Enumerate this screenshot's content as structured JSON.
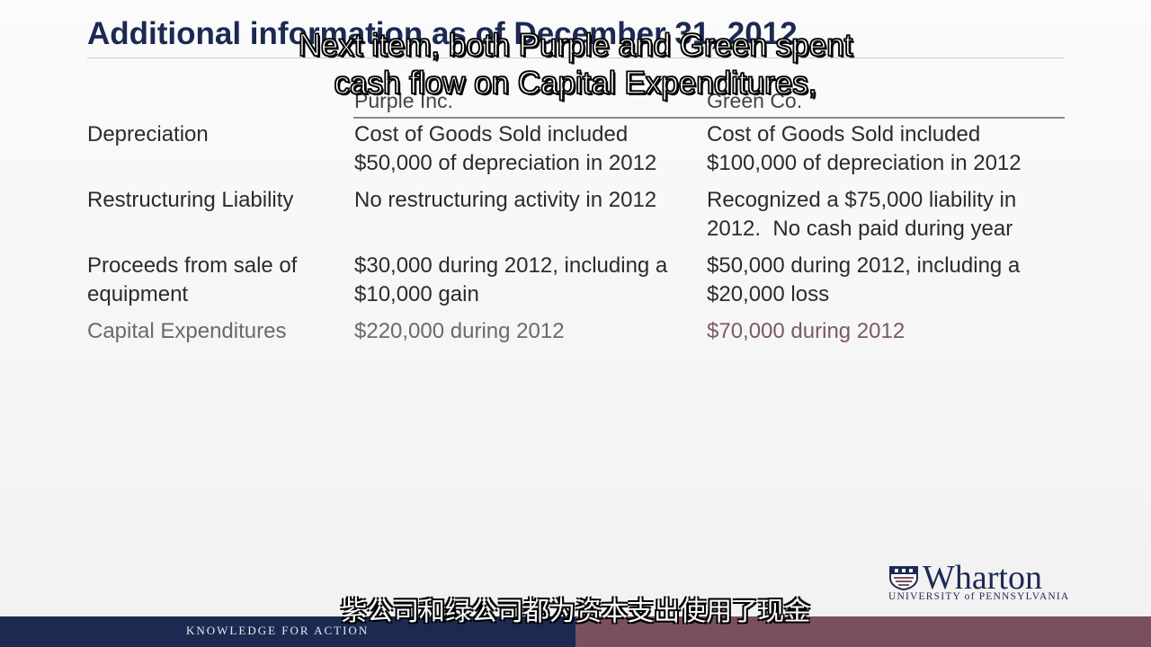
{
  "slide": {
    "title": "Additional information as of December 31, 2012",
    "columns": {
      "purple": "Purple Inc.",
      "green": "Green Co."
    },
    "rows": [
      {
        "label": [
          "Depreciation"
        ],
        "purple": [
          "Cost of Goods Sold included",
          "$50,000 of depreciation in 2012"
        ],
        "green": [
          "Cost of Goods Sold included",
          "$100,000 of depreciation in 2012"
        ]
      },
      {
        "label": [
          "Restructuring Liability"
        ],
        "purple": [
          "No restructuring activity in 2012"
        ],
        "green": [
          "Recognized a $75,000 liability in",
          "2012.  No cash paid during year"
        ]
      },
      {
        "label": [
          "Proceeds from sale of",
          "equipment"
        ],
        "purple": [
          "$30,000 during 2012, including a",
          "$10,000 gain"
        ],
        "green": [
          "$50,000 during 2012, including a",
          "$20,000 loss"
        ]
      },
      {
        "label": [
          "Capital Expenditures"
        ],
        "purple": [
          "$220,000 during 2012"
        ],
        "green": [
          "$70,000 during 2012"
        ]
      }
    ]
  },
  "subtitles": {
    "english": [
      "Next item, both Purple and Green spent",
      "cash flow on Capital Expenditures,"
    ],
    "chinese": "紫公司和绿公司都为资本支出使用了现金"
  },
  "branding": {
    "logo_name": "Wharton",
    "logo_sub": "UNIVERSITY of PENNSYLVANIA",
    "tagline": "KNOWLEDGE FOR ACTION"
  },
  "colors": {
    "navy": "#1c2a52",
    "plum": "#7a5060"
  }
}
